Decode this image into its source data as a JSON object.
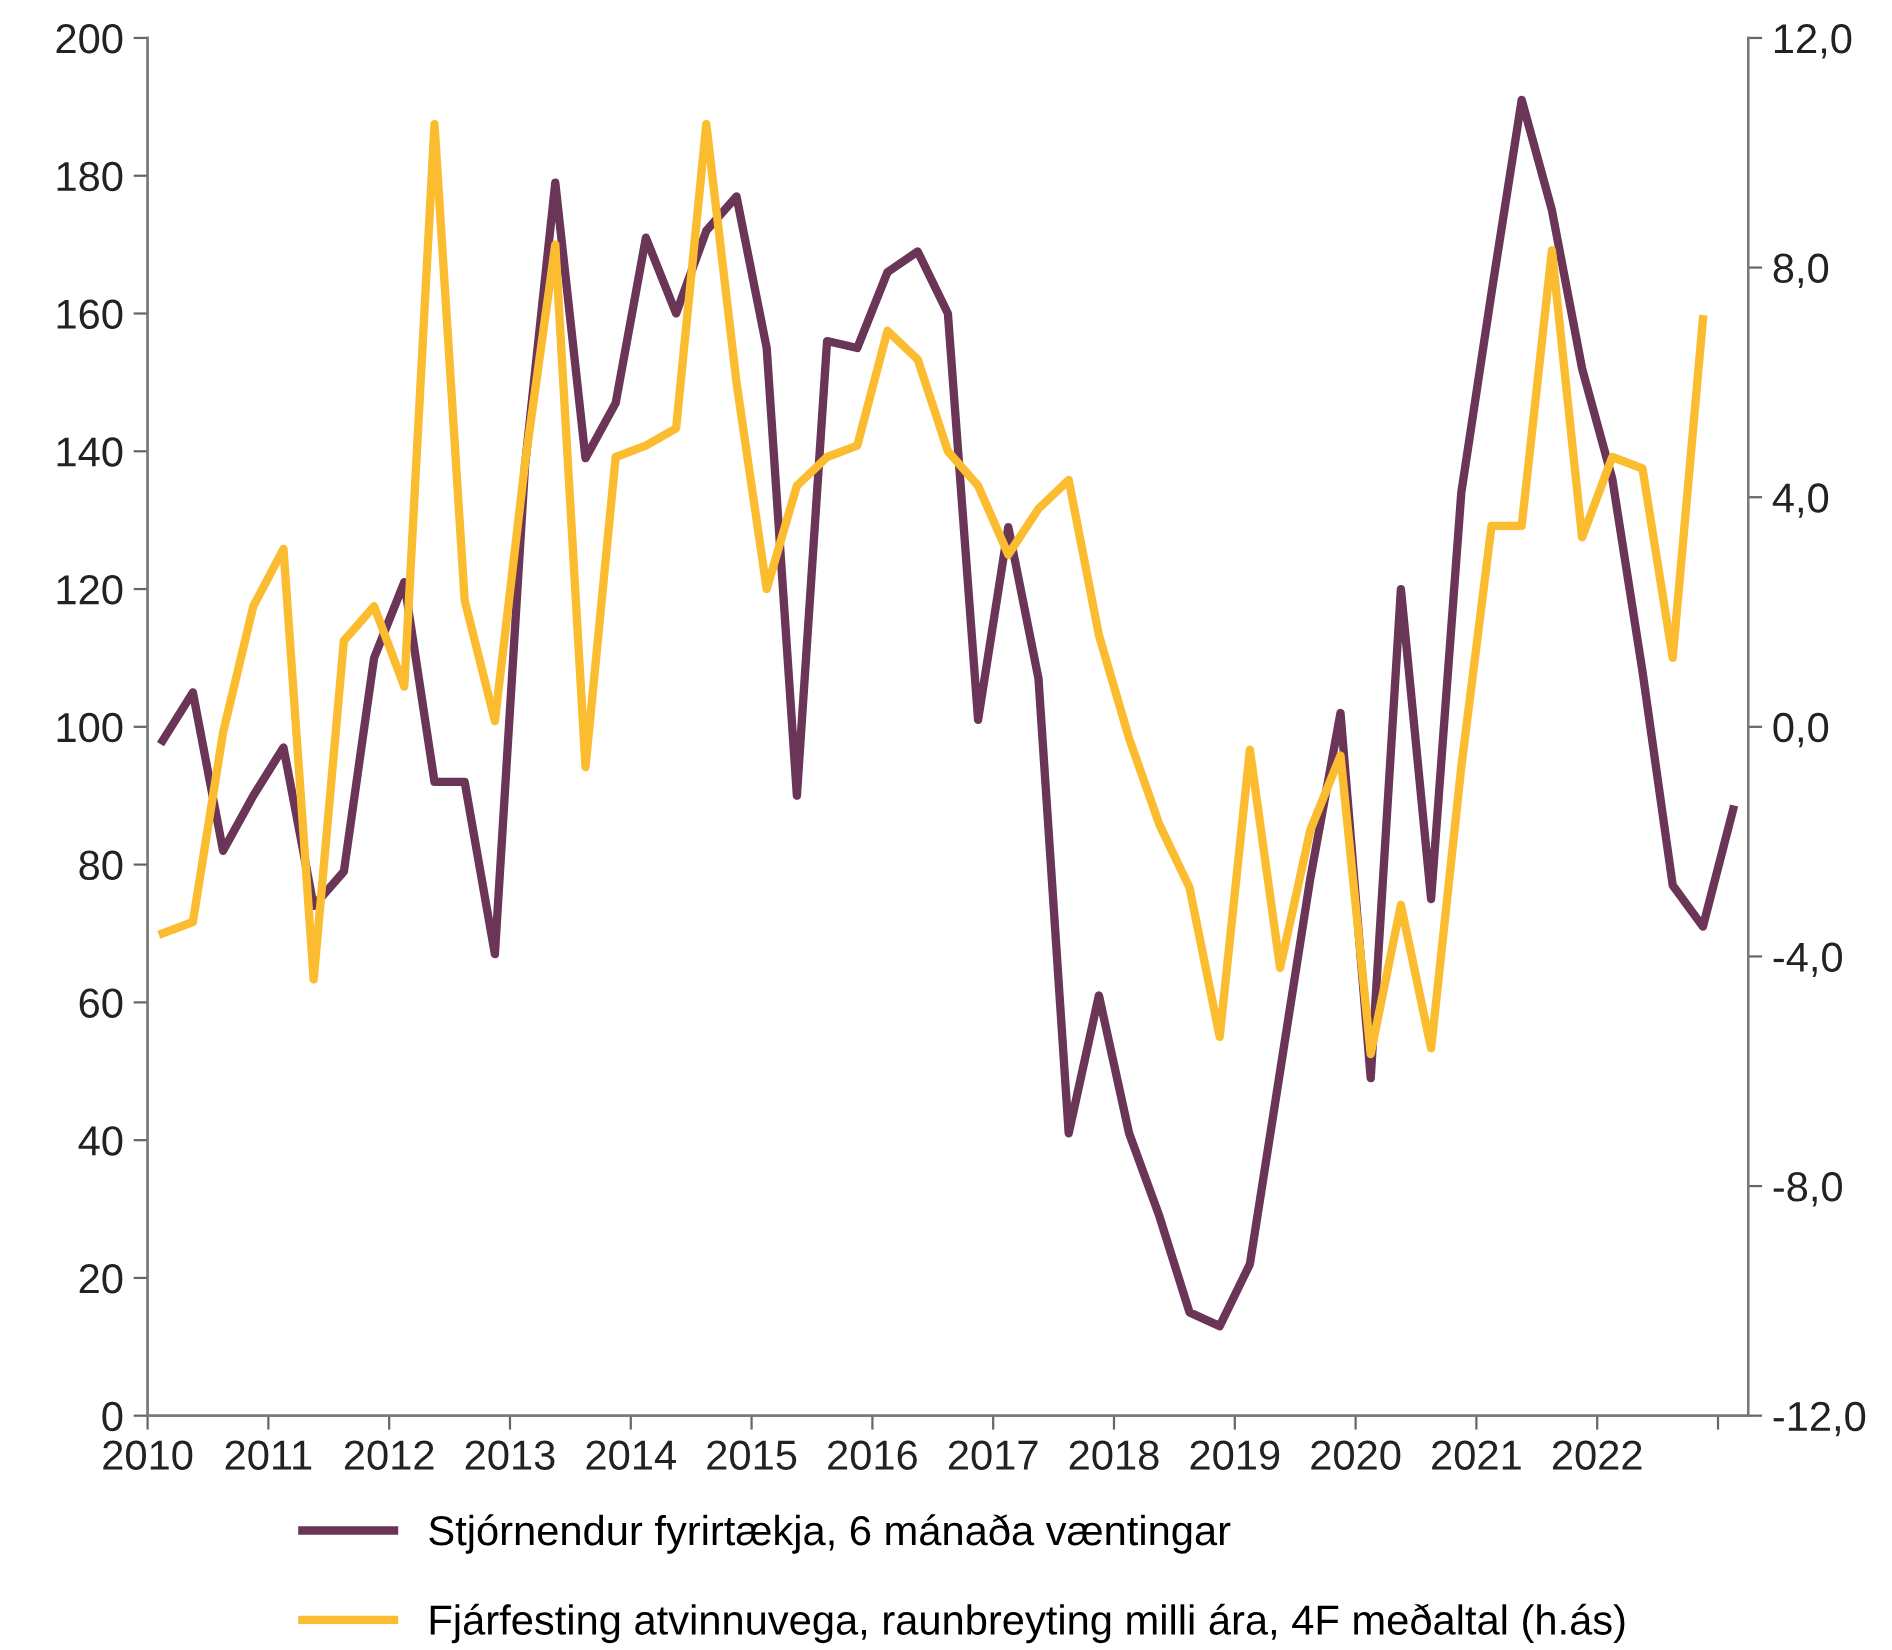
{
  "chart_data": {
    "type": "line",
    "x": [
      2010.125,
      2010.375,
      2010.625,
      2010.875,
      2011.125,
      2011.375,
      2011.625,
      2011.875,
      2012.125,
      2012.375,
      2012.625,
      2012.875,
      2013.125,
      2013.375,
      2013.625,
      2013.875,
      2014.125,
      2014.375,
      2014.625,
      2014.875,
      2015.125,
      2015.375,
      2015.625,
      2015.875,
      2016.125,
      2016.375,
      2016.625,
      2016.875,
      2017.125,
      2017.375,
      2017.625,
      2017.875,
      2018.125,
      2018.375,
      2018.625,
      2018.875,
      2019.125,
      2019.375,
      2019.625,
      2019.875,
      2020.125,
      2020.375,
      2020.625,
      2020.875,
      2021.125,
      2021.375,
      2021.625,
      2021.875,
      2022.125,
      2022.375,
      2022.625,
      2022.875,
      2023.125
    ],
    "series": [
      {
        "name": "Stjórnendur fyrirtækja, 6 mánaða væntingar",
        "color": "#6b3558",
        "values": [
          98,
          105,
          82,
          90,
          97,
          74,
          79,
          110,
          121,
          92,
          92,
          67,
          138,
          179,
          139,
          147,
          171,
          160,
          172,
          177,
          155,
          90,
          156,
          155,
          166,
          169,
          160,
          101,
          129,
          107,
          41,
          61,
          41,
          29,
          15,
          13,
          22,
          50,
          78,
          102,
          49,
          120,
          75,
          134,
          163,
          191,
          175,
          152,
          136,
          108,
          77,
          71,
          88
        ]
      },
      {
        "name": "Fjárfesting atvinnuvega, raunbreyting milli ára, 4F meðaltal (h.ás)",
        "color": "#fbbc2f",
        "axis": "y2",
        "values": [
          -3.6,
          -3.4,
          -0.1,
          2.1,
          3.1,
          -4.4,
          1.5,
          2.1,
          0.7,
          10.5,
          2.2,
          0.1,
          4.6,
          8.4,
          -0.7,
          4.7,
          4.9,
          5.2,
          10.5,
          6.0,
          2.4,
          4.2,
          4.7,
          4.9,
          6.9,
          6.4,
          4.8,
          4.2,
          3.0,
          3.8,
          4.3,
          1.6,
          -0.2,
          -1.7,
          -2.8,
          -5.4,
          -0.4,
          -4.2,
          -1.8,
          -0.5,
          -5.7,
          -3.1,
          -5.6,
          -0.7,
          3.5,
          3.5,
          8.3,
          3.3,
          4.7,
          4.5,
          1.2,
          7.1,
          null
        ]
      }
    ],
    "xlim": [
      2010,
      2023.25
    ],
    "xticks": [
      2010,
      2011,
      2012,
      2013,
      2014,
      2015,
      2016,
      2017,
      2018,
      2019,
      2020,
      2021,
      2022,
      {
        "value": 2023,
        "label": null
      }
    ],
    "ylim": [
      0,
      200
    ],
    "yticks": [
      0,
      20,
      40,
      60,
      80,
      100,
      120,
      140,
      160,
      180,
      200
    ],
    "y2lim": [
      -12,
      12
    ],
    "y2ticks": [
      {
        "value": -12,
        "label": "-12,0"
      },
      {
        "value": -8,
        "label": "-8,0"
      },
      {
        "value": -4,
        "label": "-4,0"
      },
      {
        "value": 0,
        "label": "0,0"
      },
      {
        "value": 4,
        "label": "4,0"
      },
      {
        "value": 8,
        "label": "8,0"
      },
      {
        "value": 12,
        "label": "12,0"
      }
    ],
    "legend": "bottom",
    "grid": false,
    "marker": "none",
    "line_style": "solid"
  }
}
